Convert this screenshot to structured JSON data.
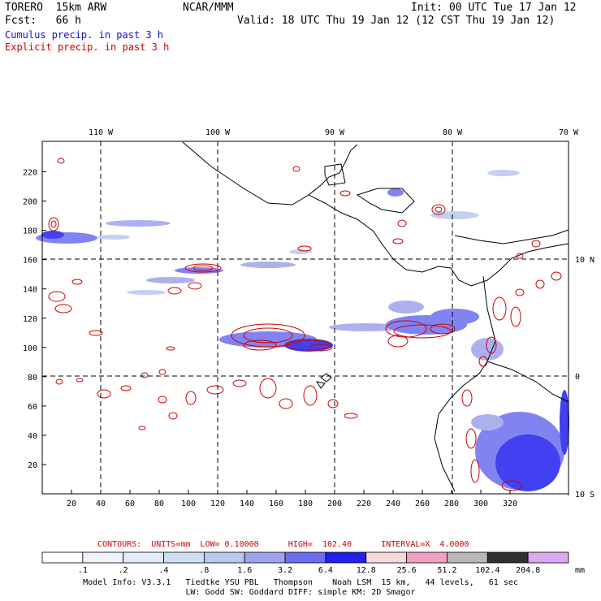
{
  "header": {
    "model": "TORERO  15km ARW",
    "org": "NCAR/MMM",
    "init": "Init: 00 UTC Tue 17 Jan 12",
    "fcst": "Fcst:   66 h",
    "valid": "Valid: 18 UTC Thu 19 Jan 12 (12 CST Thu 19 Jan 12)"
  },
  "legend": {
    "cumulus": "Cumulus precip. in past 3 h",
    "explicit": "Explicit precip. in past 3 h",
    "cumulus_color": "#1010d0",
    "explicit_color": "#d00000"
  },
  "map": {
    "top_lon_labels": [
      "110 W",
      "100 W",
      "90 W",
      "80 W",
      "70 W"
    ],
    "right_lat_labels": [
      "10 N",
      "0",
      "10 S"
    ],
    "x_ticks": [
      "20",
      "40",
      "60",
      "80",
      "100",
      "120",
      "140",
      "160",
      "180",
      "200",
      "220",
      "240",
      "260",
      "280",
      "300",
      "320"
    ],
    "y_ticks": [
      "20",
      "40",
      "60",
      "80",
      "100",
      "120",
      "140",
      "160",
      "180",
      "200",
      "220"
    ],
    "land_color": "#000000",
    "grid_color": "#000000"
  },
  "contours": {
    "label": "CONTOURS:  UNITS=mm  LOW= 0.10000      HIGH=  102.40      INTERVAL=X  4.0000"
  },
  "colorbar": {
    "labels": [
      ".1",
      ".2",
      ".4",
      ".8",
      "1.6",
      "3.2",
      "6.4",
      "12.8",
      "25.6",
      "51.2",
      "102.4",
      "204.8"
    ],
    "units": "mm",
    "colors": [
      "#ffffff",
      "#eef3fb",
      "#e2ecf8",
      "#cfdff3",
      "#b8c8ef",
      "#9ea4ec",
      "#6c6ef0",
      "#2020f0",
      "#f8d8d8",
      "#f0a0c0",
      "#b8b8b8",
      "#303030",
      "#d8a8f0"
    ]
  },
  "footer": {
    "line1": "Model Info: V3.3.1   Tiedtke YSU PBL   Thompson    Noah LSM  15 km,   44 levels,   61 sec",
    "line2": "LW: Godd SW: Goddard DIFF: simple KM: 2D Smagor"
  }
}
